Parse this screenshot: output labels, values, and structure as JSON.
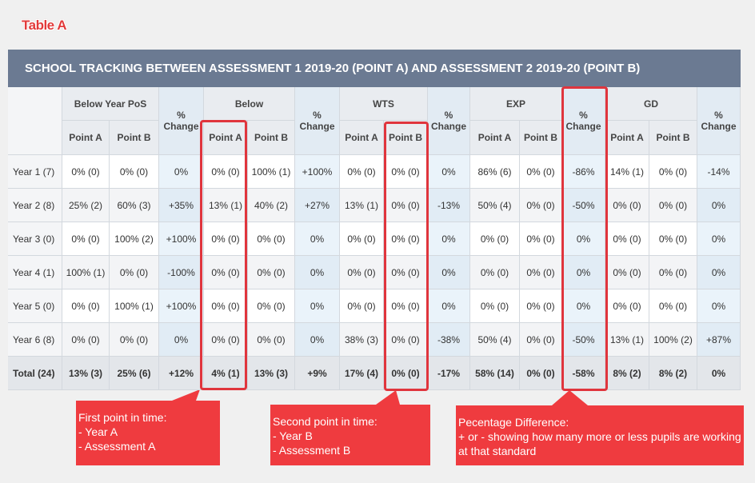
{
  "label": "Table A",
  "table": {
    "title": "SCHOOL TRACKING BETWEEN ASSESSMENT 1 2019-20 (POINT A) AND ASSESSMENT 2 2019-20 (POINT B)",
    "groups": [
      {
        "name": "Below Year PoS",
        "points": [
          "Point A",
          "Point B"
        ],
        "change": "% Change"
      },
      {
        "name": "Below",
        "points": [
          "Point A",
          "Point B"
        ],
        "change": "% Change"
      },
      {
        "name": "WTS",
        "points": [
          "Point A",
          "Point B"
        ],
        "change": "% Change"
      },
      {
        "name": "EXP",
        "points": [
          "Point A",
          "Point B"
        ],
        "change": "% Change"
      },
      {
        "name": "GD",
        "points": [
          "Point A",
          "Point B"
        ],
        "change": "% Change"
      }
    ],
    "rows": [
      [
        "Year 1 (7)",
        "0% (0)",
        "0% (0)",
        "0%",
        "0% (0)",
        "100% (1)",
        "+100%",
        "0% (0)",
        "0% (0)",
        "0%",
        "86% (6)",
        "0% (0)",
        "-86%",
        "14% (1)",
        "0% (0)",
        "-14%"
      ],
      [
        "Year 2 (8)",
        "25% (2)",
        "60% (3)",
        "+35%",
        "13% (1)",
        "40% (2)",
        "+27%",
        "13% (1)",
        "0% (0)",
        "-13%",
        "50% (4)",
        "0% (0)",
        "-50%",
        "0% (0)",
        "0% (0)",
        "0%"
      ],
      [
        "Year 3 (0)",
        "0% (0)",
        "100% (2)",
        "+100%",
        "0% (0)",
        "0% (0)",
        "0%",
        "0% (0)",
        "0% (0)",
        "0%",
        "0% (0)",
        "0% (0)",
        "0%",
        "0% (0)",
        "0% (0)",
        "0%"
      ],
      [
        "Year 4 (1)",
        "100% (1)",
        "0% (0)",
        "-100%",
        "0% (0)",
        "0% (0)",
        "0%",
        "0% (0)",
        "0% (0)",
        "0%",
        "0% (0)",
        "0% (0)",
        "0%",
        "0% (0)",
        "0% (0)",
        "0%"
      ],
      [
        "Year 5 (0)",
        "0% (0)",
        "100% (1)",
        "+100%",
        "0% (0)",
        "0% (0)",
        "0%",
        "0% (0)",
        "0% (0)",
        "0%",
        "0% (0)",
        "0% (0)",
        "0%",
        "0% (0)",
        "0% (0)",
        "0%"
      ],
      [
        "Year 6 (8)",
        "0% (0)",
        "0% (0)",
        "0%",
        "0% (0)",
        "0% (0)",
        "0%",
        "38% (3)",
        "0% (0)",
        "-38%",
        "50% (4)",
        "0% (0)",
        "-50%",
        "13% (1)",
        "100% (2)",
        "+87%"
      ]
    ],
    "total": [
      "Total (24)",
      "13% (3)",
      "25% (6)",
      "+12%",
      "4% (1)",
      "13% (3)",
      "+9%",
      "17% (4)",
      "0% (0)",
      "-17%",
      "58% (14)",
      "0% (0)",
      "-58%",
      "8% (2)",
      "8% (2)",
      "0%"
    ]
  },
  "callouts": [
    {
      "title": "First point in time:",
      "lines": [
        "- Year A",
        "- Assessment A"
      ]
    },
    {
      "title": "Second point in time:",
      "lines": [
        "- Year B",
        "- Assessment B"
      ]
    },
    {
      "title": "Pecentage Difference:",
      "lines": [
        "+ or - showing how many more or less pupils are working at that standard"
      ]
    }
  ]
}
